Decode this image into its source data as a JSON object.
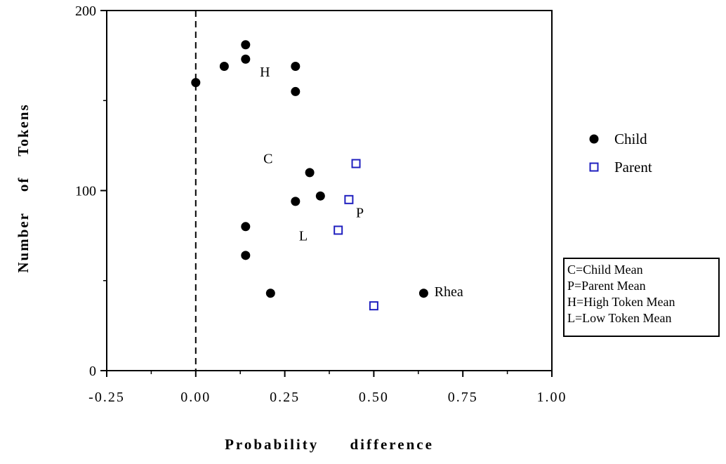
{
  "chart_data": {
    "type": "scatter",
    "xlabel": "Probability difference",
    "ylabel": "Number of Tokens",
    "xlim": [
      -0.25,
      1.0
    ],
    "ylim": [
      0,
      200
    ],
    "x_ticks": [
      -0.25,
      0.0,
      0.25,
      0.5,
      0.75,
      1.0
    ],
    "x_tick_labels": [
      "-0.25",
      "0.00",
      "0.25",
      "0.50",
      "0.75",
      "1.00"
    ],
    "x_minor_ticks": [
      -0.125,
      0.125,
      0.375,
      0.625,
      0.875
    ],
    "y_ticks": [
      0,
      100,
      200
    ],
    "y_tick_labels": [
      "0",
      "100",
      "200"
    ],
    "y_minor_ticks": [
      50,
      150
    ],
    "reference_line": {
      "x": 0.0,
      "style": "dashed"
    },
    "series": [
      {
        "name": "Child",
        "marker": "filled-circle",
        "color": "#000000",
        "points": [
          {
            "x": 0.14,
            "y": 181
          },
          {
            "x": 0.14,
            "y": 173
          },
          {
            "x": 0.08,
            "y": 169
          },
          {
            "x": 0.28,
            "y": 169
          },
          {
            "x": 0.0,
            "y": 160
          },
          {
            "x": 0.28,
            "y": 155
          },
          {
            "x": 0.32,
            "y": 110
          },
          {
            "x": 0.35,
            "y": 97
          },
          {
            "x": 0.28,
            "y": 94
          },
          {
            "x": 0.14,
            "y": 80
          },
          {
            "x": 0.14,
            "y": 64
          },
          {
            "x": 0.21,
            "y": 43
          },
          {
            "x": 0.64,
            "y": 43
          }
        ]
      },
      {
        "name": "Parent",
        "marker": "open-square",
        "color": "#1f1fbf",
        "points": [
          {
            "x": 0.45,
            "y": 115
          },
          {
            "x": 0.43,
            "y": 95
          },
          {
            "x": 0.4,
            "y": 78
          },
          {
            "x": 0.5,
            "y": 36
          }
        ]
      }
    ],
    "annotations": [
      {
        "text": "H",
        "x": 0.18,
        "y": 166
      },
      {
        "text": "C",
        "x": 0.19,
        "y": 118
      },
      {
        "text": "P",
        "x": 0.45,
        "y": 88
      },
      {
        "text": "L",
        "x": 0.29,
        "y": 75
      },
      {
        "text": "Rhea",
        "x": 0.67,
        "y": 44
      }
    ],
    "legend": {
      "placement": "right",
      "entries": [
        "Child",
        "Parent"
      ]
    },
    "key_box": {
      "placement": "right",
      "lines": [
        "C=Child Mean",
        "P=Parent Mean",
        "H=High Token Mean",
        "L=Low Token Mean"
      ]
    }
  }
}
